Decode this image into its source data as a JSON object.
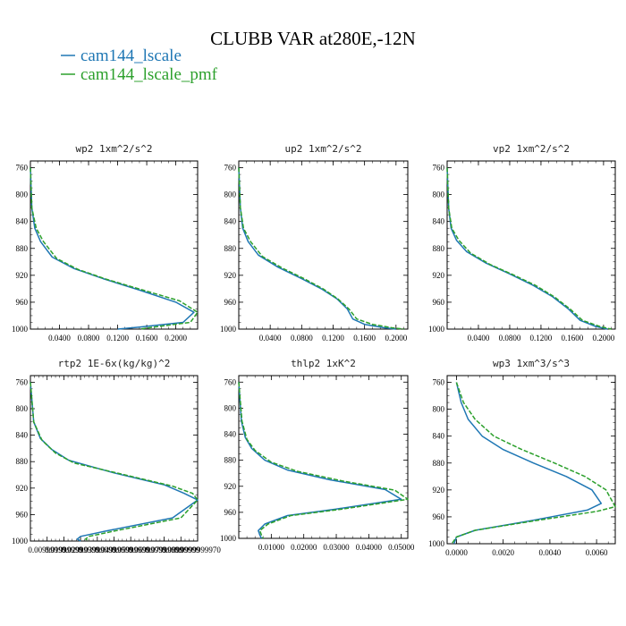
{
  "figure": {
    "title": "CLUBB VAR at280E,-12N",
    "legend": [
      {
        "label": "cam144_lscale",
        "color": "#1f77b4"
      },
      {
        "label": "cam144_lscale_pmf",
        "color": "#2ca02c"
      }
    ]
  },
  "chart_data": [
    {
      "type": "line",
      "title": "wp2  1xm^2/s^2",
      "xlim": [
        0,
        0.23
      ],
      "ylim": [
        1000,
        750
      ],
      "yticks": [
        "760",
        "800",
        "840",
        "880",
        "920",
        "960",
        "1000"
      ],
      "xticks": [
        "0.0400",
        "0.0800",
        "0.1200",
        "0.1600",
        "0.2000"
      ],
      "series": [
        {
          "name": "cam144_lscale",
          "color": "#1f77b4",
          "x": [
            0,
            0.002,
            0.006,
            0.014,
            0.03,
            0.06,
            0.1,
            0.15,
            0.2,
            0.225,
            0.21,
            0.15,
            0.12
          ],
          "y": [
            760,
            820,
            850,
            870,
            893,
            910,
            925,
            942,
            960,
            975,
            990,
            997,
            1000
          ]
        },
        {
          "name": "cam144_lscale_pmf",
          "color": "#2ca02c",
          "x": [
            0,
            0.002,
            0.008,
            0.018,
            0.036,
            0.065,
            0.105,
            0.155,
            0.205,
            0.23,
            0.22,
            0.17,
            0.15
          ],
          "y": [
            760,
            820,
            850,
            870,
            895,
            911,
            926,
            942,
            958,
            975,
            990,
            997,
            1000
          ]
        }
      ]
    },
    {
      "type": "line",
      "title": "up2  1xm^2/s^2",
      "xlim": [
        0,
        0.215
      ],
      "ylim": [
        1000,
        750
      ],
      "yticks": [
        "760",
        "800",
        "840",
        "880",
        "920",
        "960",
        "1000"
      ],
      "xticks": [
        "0.0400",
        "0.0800",
        "0.1200",
        "0.1600",
        "0.2000"
      ],
      "series": [
        {
          "name": "cam144_lscale",
          "color": "#1f77b4",
          "x": [
            0,
            0.002,
            0.005,
            0.012,
            0.025,
            0.05,
            0.08,
            0.105,
            0.125,
            0.138,
            0.145,
            0.16,
            0.185,
            0.2
          ],
          "y": [
            760,
            820,
            850,
            870,
            890,
            908,
            925,
            940,
            955,
            970,
            985,
            993,
            998,
            1000
          ]
        },
        {
          "name": "cam144_lscale_pmf",
          "color": "#2ca02c",
          "x": [
            0,
            0.002,
            0.006,
            0.015,
            0.03,
            0.055,
            0.083,
            0.107,
            0.126,
            0.14,
            0.15,
            0.17,
            0.195,
            0.21
          ],
          "y": [
            760,
            820,
            850,
            870,
            892,
            909,
            925,
            940,
            955,
            970,
            985,
            993,
            998,
            1000
          ]
        }
      ]
    },
    {
      "type": "line",
      "title": "vp2  1xm^2/s^2",
      "xlim": [
        0,
        0.215
      ],
      "ylim": [
        1000,
        750
      ],
      "yticks": [
        "760",
        "800",
        "840",
        "880",
        "920",
        "960",
        "1000"
      ],
      "xticks": [
        "0.0400",
        "0.0800",
        "0.1200",
        "0.1600",
        "0.2000"
      ],
      "series": [
        {
          "name": "cam144_lscale",
          "color": "#1f77b4",
          "x": [
            0,
            0.002,
            0.005,
            0.012,
            0.025,
            0.05,
            0.08,
            0.11,
            0.135,
            0.155,
            0.17,
            0.19,
            0.205
          ],
          "y": [
            760,
            820,
            850,
            868,
            885,
            902,
            918,
            935,
            952,
            970,
            987,
            996,
            1000
          ]
        },
        {
          "name": "cam144_lscale_pmf",
          "color": "#2ca02c",
          "x": [
            0,
            0.002,
            0.006,
            0.015,
            0.03,
            0.055,
            0.084,
            0.113,
            0.137,
            0.157,
            0.173,
            0.195,
            0.21
          ],
          "y": [
            760,
            820,
            850,
            868,
            887,
            904,
            919,
            935,
            952,
            970,
            987,
            996,
            1000
          ]
        }
      ]
    },
    {
      "type": "line",
      "title": "rtp2  1E-6x(kg/kg)^2",
      "xlim": [
        0,
        0.1
      ],
      "ylim": [
        1000,
        750
      ],
      "yticks": [
        "760",
        "800",
        "840",
        "880",
        "920",
        "960",
        "1000"
      ],
      "xticks": [
        "0.00999999",
        "0.01999999",
        "0.02999999",
        "0.03999999",
        "0.04999999",
        "0.05999999",
        "0.06999999",
        "0.07999999",
        "0.08999999",
        "0.0999999970"
      ],
      "series": [
        {
          "name": "cam144_lscale",
          "color": "#1f77b4",
          "x": [
            0,
            0.002,
            0.006,
            0.013,
            0.023,
            0.05,
            0.08,
            0.092,
            0.1,
            0.085,
            0.045,
            0.03,
            0.028,
            0.03
          ],
          "y": [
            760,
            820,
            845,
            862,
            878,
            897,
            915,
            928,
            938,
            965,
            985,
            993,
            997,
            1000
          ]
        },
        {
          "name": "cam144_lscale_pmf",
          "color": "#2ca02c",
          "x": [
            0,
            0.002,
            0.007,
            0.015,
            0.026,
            0.055,
            0.085,
            0.097,
            0.1,
            0.09,
            0.05,
            0.035,
            0.033,
            0.035
          ],
          "y": [
            760,
            820,
            848,
            867,
            882,
            899,
            917,
            928,
            938,
            965,
            985,
            993,
            997,
            1000
          ]
        }
      ]
    },
    {
      "type": "line",
      "title": "thlp2  1xK^2",
      "xlim": [
        0,
        0.052
      ],
      "ylim": [
        1000,
        750
      ],
      "yticks": [
        "760",
        "800",
        "840",
        "880",
        "920",
        "960",
        "1000"
      ],
      "xticks": [
        "0.01000",
        "0.02000",
        "0.03000",
        "0.04000",
        "0.05000"
      ],
      "series": [
        {
          "name": "cam144_lscale",
          "color": "#1f77b4",
          "x": [
            0,
            0.0008,
            0.002,
            0.004,
            0.008,
            0.015,
            0.028,
            0.045,
            0.05,
            0.03,
            0.015,
            0.008,
            0.006,
            0.0065,
            0.007
          ],
          "y": [
            760,
            820,
            845,
            862,
            880,
            895,
            910,
            925,
            940,
            955,
            965,
            978,
            988,
            995,
            1000
          ]
        },
        {
          "name": "cam144_lscale_pmf",
          "color": "#2ca02c",
          "x": [
            0,
            0.001,
            0.0025,
            0.005,
            0.01,
            0.018,
            0.032,
            0.048,
            0.052,
            0.032,
            0.016,
            0.009,
            0.0065,
            0.007,
            0.0075
          ],
          "y": [
            760,
            820,
            848,
            865,
            883,
            897,
            912,
            926,
            940,
            955,
            965,
            978,
            988,
            995,
            1000
          ]
        }
      ]
    },
    {
      "type": "line",
      "title": "wp3  1xm^3/s^3",
      "xlim": [
        -0.0004,
        0.0068
      ],
      "ylim": [
        1000,
        750
      ],
      "yticks": [
        "760",
        "800",
        "840",
        "880",
        "920",
        "960",
        "1000"
      ],
      "xticks": [
        "0.0000",
        "0.0020",
        "0.0040",
        "0.0060"
      ],
      "series": [
        {
          "name": "cam144_lscale",
          "color": "#1f77b4",
          "x": [
            0,
            0.0002,
            0.0005,
            0.0011,
            0.002,
            0.0033,
            0.0047,
            0.0058,
            0.0062,
            0.0056,
            0.0033,
            0.0008,
            0,
            -0.0001
          ],
          "y": [
            760,
            790,
            815,
            840,
            860,
            880,
            900,
            920,
            940,
            950,
            965,
            980,
            990,
            1000
          ]
        },
        {
          "name": "cam144_lscale_pmf",
          "color": "#2ca02c",
          "x": [
            0,
            0.0003,
            0.0008,
            0.0016,
            0.0028,
            0.0042,
            0.0055,
            0.0064,
            0.0068,
            0.006,
            0.0035,
            0.0008,
            0,
            -0.0002
          ],
          "y": [
            760,
            790,
            815,
            840,
            860,
            880,
            900,
            920,
            945,
            952,
            965,
            980,
            990,
            1000
          ]
        }
      ]
    }
  ]
}
